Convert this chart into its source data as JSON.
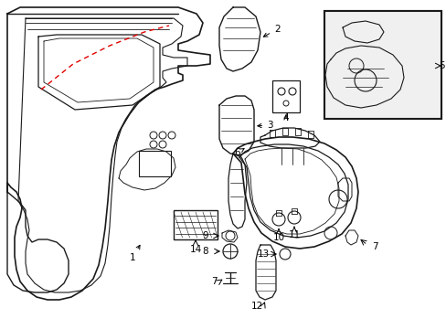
{
  "bg_color": "#ffffff",
  "line_color": "#1a1a1a",
  "red_dash_color": "#e00000",
  "figsize": [
    4.89,
    3.6
  ],
  "dpi": 100
}
